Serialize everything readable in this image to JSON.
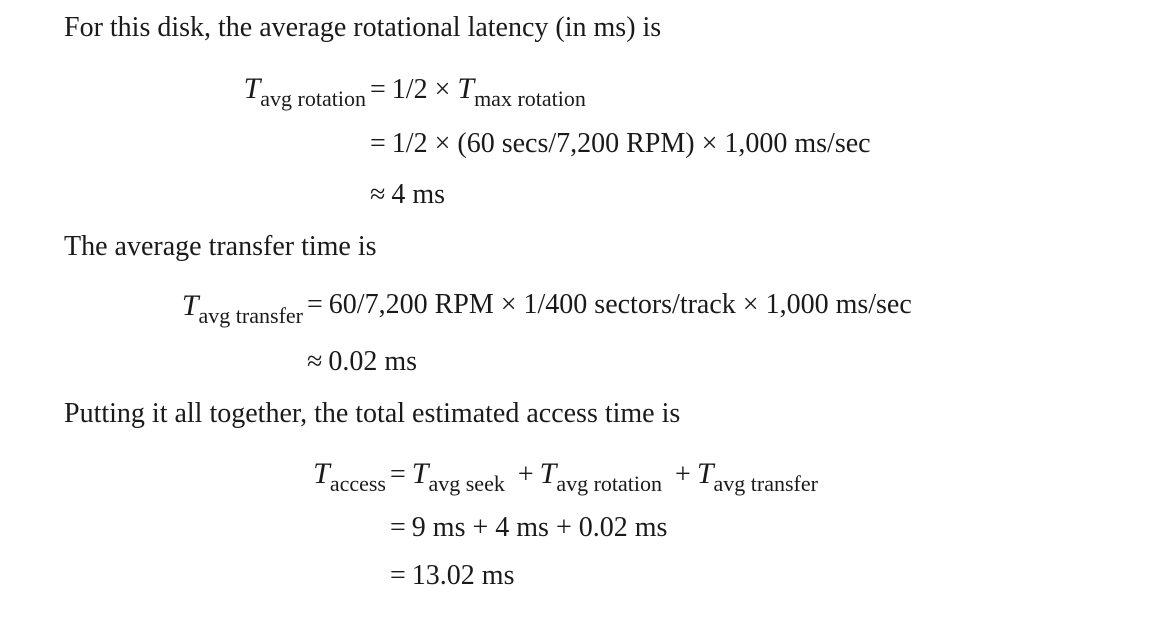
{
  "intro_rotation": "For this disk, the average rotational latency (in ms) is",
  "rotation": {
    "lhs_sub": "avg rotation",
    "line1_rel": "=",
    "line1_rhs_prefix": "1/2 ×",
    "line1_rhs_sub": "max rotation",
    "line2_rel": "=",
    "line2_rhs": "1/2 × (60 secs/7,200 RPM) × 1,000 ms/sec",
    "line3_rel": "≈",
    "line3_rhs": "4 ms"
  },
  "intro_transfer": "The average transfer time is",
  "transfer": {
    "lhs_sub": "avg transfer",
    "line1_rel": "=",
    "line1_rhs": "60/7,200 RPM × 1/400 sectors/track × 1,000 ms/sec",
    "line2_rel": "≈",
    "line2_rhs": "0.02 ms"
  },
  "intro_access": "Putting it all together, the total estimated access time is",
  "access": {
    "lhs_sub": "access",
    "line1_rel": "=",
    "term1_sub": "avg seek",
    "plus": "+",
    "term2_sub": "avg rotation",
    "term3_sub": "avg transfer",
    "line2_rel": "=",
    "line2_rhs": "9 ms + 4 ms + 0.02 ms",
    "line3_rel": "=",
    "line3_rhs": "13.02 ms"
  },
  "symbol_T": "T"
}
